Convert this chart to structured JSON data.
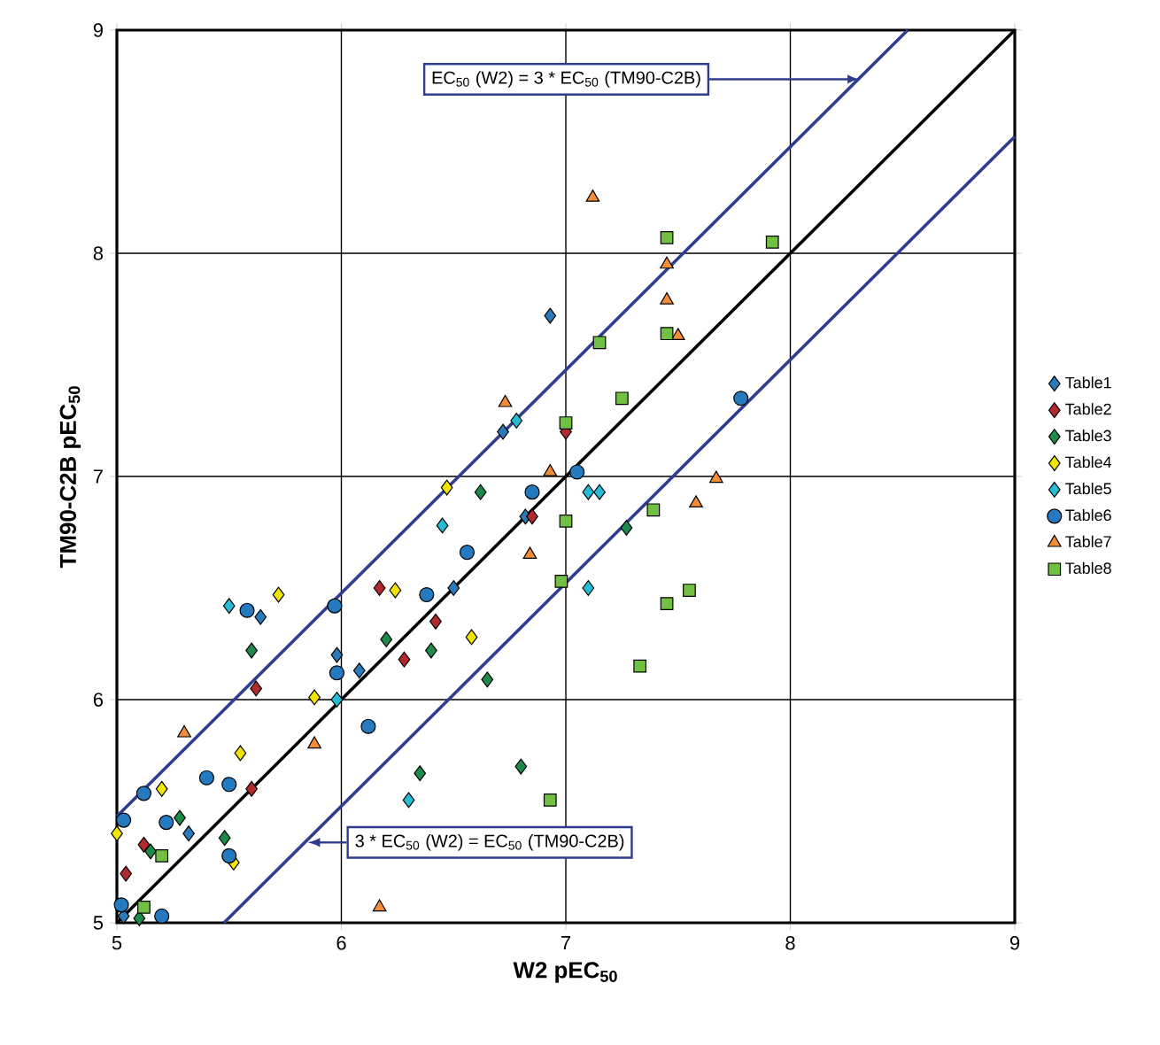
{
  "chart_data": {
    "type": "scatter",
    "xlabel": "W2 pEC$_{50}$",
    "ylabel": "TM90-C2B pEC$_{50}$",
    "xlim": [
      5,
      9
    ],
    "ylim": [
      5,
      9
    ],
    "xticks": [
      5,
      6,
      7,
      8,
      9
    ],
    "yticks": [
      5,
      6,
      7,
      8,
      9
    ],
    "grid": true,
    "legend": "right",
    "annotations": [
      {
        "text": "EC$_{50}$ (W2) = 3 * EC$_{50}$ (TM90-C2B)",
        "x": 8.31,
        "y": 8.78
      },
      {
        "text": "3 * EC$_{50}$ (W2) = EC$_{50}$ (TM90-C2B)",
        "x": 5.85,
        "y": 5.36
      }
    ],
    "series": [
      {
        "name": "Table1",
        "color": "#2a7ab8",
        "marker": "diamond",
        "x": [
          6.93,
          6.72,
          5.64,
          5.32,
          6.08,
          6.82,
          5.98,
          5.03,
          6.5
        ],
        "values": [
          7.72,
          7.2,
          6.37,
          5.4,
          6.13,
          6.82,
          6.2,
          5.03,
          6.5
        ]
      },
      {
        "name": "Table2",
        "color": "#b22a2e",
        "marker": "diamond",
        "x": [
          5.62,
          6.17,
          6.42,
          7.0,
          6.85,
          5.12,
          6.28,
          5.04,
          5.6
        ],
        "values": [
          6.05,
          6.5,
          6.35,
          7.2,
          6.82,
          5.35,
          6.18,
          5.22,
          5.6
        ]
      },
      {
        "name": "Table3",
        "color": "#1e8a4a",
        "marker": "diamond",
        "x": [
          5.6,
          6.2,
          5.48,
          6.35,
          6.8,
          6.4,
          6.62,
          6.65,
          7.27,
          5.28,
          5.15,
          5.1
        ],
        "values": [
          6.22,
          6.27,
          5.38,
          5.67,
          5.7,
          6.22,
          6.93,
          6.09,
          6.77,
          5.47,
          5.32,
          5.02
        ]
      },
      {
        "name": "Table4",
        "color": "#f2e600",
        "marker": "diamond",
        "x": [
          5.72,
          5.88,
          6.47,
          5.55,
          6.24,
          6.58,
          5.0,
          5.52,
          5.2
        ],
        "values": [
          6.47,
          6.01,
          6.95,
          5.76,
          6.49,
          6.28,
          5.4,
          5.27,
          5.6
        ]
      },
      {
        "name": "Table5",
        "color": "#27bcd6",
        "marker": "diamond",
        "x": [
          5.5,
          6.45,
          6.78,
          5.98,
          7.1,
          7.15,
          7.1,
          6.3
        ],
        "values": [
          6.42,
          6.78,
          7.25,
          6.0,
          6.93,
          6.93,
          6.5,
          5.55
        ]
      },
      {
        "name": "Table6",
        "color": "#2479bf",
        "marker": "circle",
        "x": [
          5.58,
          5.97,
          5.98,
          6.12,
          5.4,
          5.5,
          5.03,
          5.12,
          5.22,
          5.02,
          5.2,
          6.56,
          6.85,
          7.05,
          7.78,
          5.5,
          6.38
        ],
        "values": [
          6.4,
          6.42,
          6.12,
          5.88,
          5.65,
          5.62,
          5.46,
          5.58,
          5.45,
          5.08,
          5.03,
          6.66,
          6.93,
          7.02,
          7.35,
          5.3,
          6.47
        ]
      },
      {
        "name": "Table7",
        "color": "#f28c38",
        "marker": "triangle",
        "x": [
          5.3,
          5.88,
          6.17,
          6.73,
          6.93,
          6.84,
          7.12,
          7.45,
          7.45,
          7.5,
          7.67,
          7.58
        ],
        "values": [
          5.85,
          5.8,
          5.07,
          7.33,
          7.02,
          6.65,
          8.25,
          7.95,
          7.79,
          7.63,
          6.99,
          6.88
        ]
      },
      {
        "name": "Table8",
        "color": "#72c043",
        "marker": "square",
        "x": [
          7.45,
          7.92,
          7.45,
          7.15,
          7.25,
          7.0,
          7.0,
          6.98,
          6.93,
          7.39,
          7.45,
          7.55,
          7.33,
          5.2,
          5.12
        ],
        "values": [
          8.07,
          8.05,
          7.64,
          7.6,
          7.35,
          7.24,
          6.8,
          6.53,
          5.55,
          6.85,
          6.43,
          6.49,
          6.15,
          5.3,
          5.07
        ]
      },
      {
        "type": "line",
        "color": "#2e3d8f",
        "marker": "none",
        "x": [
          5,
          8.523
        ],
        "values": [
          5.477,
          9
        ]
      },
      {
        "type": "line",
        "color": "#000000",
        "marker": "none",
        "x": [
          5,
          9
        ],
        "values": [
          5,
          9
        ]
      },
      {
        "type": "line",
        "color": "#2e3d8f",
        "marker": "none",
        "x": [
          5.477,
          9
        ],
        "values": [
          5,
          8.523
        ]
      }
    ]
  }
}
